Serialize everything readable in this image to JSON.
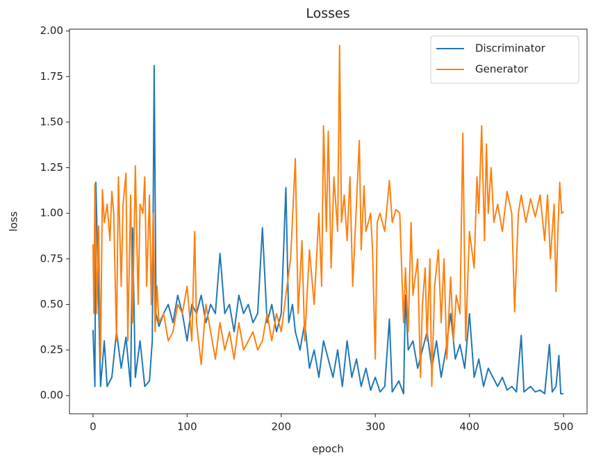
{
  "chart_data": {
    "type": "line",
    "title": "Losses",
    "x_label": "epoch",
    "y_label": "loss",
    "xlim": [
      -25,
      525
    ],
    "ylim": [
      -0.1,
      2.01
    ],
    "xticks": [
      0,
      100,
      200,
      300,
      400,
      500
    ],
    "yticks": [
      {
        "value": 0,
        "label": "0.00"
      },
      {
        "value": 0.25,
        "label": "0.25"
      },
      {
        "value": 0.5,
        "label": "0.50"
      },
      {
        "value": 0.75,
        "label": "0.75"
      },
      {
        "value": 1,
        "label": "1.00"
      },
      {
        "value": 1.25,
        "label": "1.25"
      },
      {
        "value": 1.5,
        "label": "1.50"
      },
      {
        "value": 1.75,
        "label": "1.75"
      },
      {
        "value": 2,
        "label": "2.00"
      }
    ],
    "grid": false,
    "legend": "upper right",
    "series": [
      {
        "name": "Discriminator",
        "color": "#1f77b4",
        "x": [
          0,
          2,
          3,
          5,
          8,
          12,
          15,
          20,
          25,
          30,
          35,
          40,
          42,
          45,
          50,
          55,
          60,
          63,
          65,
          67,
          70,
          75,
          80,
          85,
          90,
          95,
          100,
          105,
          110,
          115,
          120,
          125,
          130,
          135,
          140,
          145,
          150,
          155,
          160,
          165,
          170,
          175,
          180,
          185,
          190,
          195,
          200,
          205,
          208,
          212,
          215,
          220,
          225,
          230,
          235,
          240,
          245,
          250,
          255,
          260,
          265,
          270,
          275,
          280,
          285,
          290,
          295,
          300,
          305,
          310,
          315,
          318,
          325,
          330,
          332,
          335,
          340,
          345,
          350,
          355,
          360,
          365,
          370,
          375,
          380,
          385,
          390,
          395,
          400,
          405,
          410,
          415,
          420,
          425,
          430,
          435,
          440,
          445,
          450,
          455,
          458,
          465,
          470,
          475,
          480,
          485,
          488,
          492,
          495,
          497,
          500
        ],
        "values": [
          0.36,
          0.05,
          1.17,
          0.76,
          0.05,
          0.3,
          0.05,
          0.1,
          0.35,
          0.15,
          0.32,
          0.05,
          0.92,
          0.1,
          0.3,
          0.05,
          0.08,
          0.3,
          1.81,
          0.45,
          0.38,
          0.45,
          0.5,
          0.4,
          0.55,
          0.45,
          0.3,
          0.5,
          0.45,
          0.55,
          0.4,
          0.5,
          0.45,
          0.78,
          0.45,
          0.5,
          0.35,
          0.55,
          0.45,
          0.5,
          0.4,
          0.45,
          0.92,
          0.4,
          0.5,
          0.35,
          0.45,
          1.14,
          0.4,
          0.5,
          0.35,
          0.25,
          0.4,
          0.15,
          0.25,
          0.1,
          0.3,
          0.2,
          0.1,
          0.25,
          0.05,
          0.3,
          0.1,
          0.2,
          0.05,
          0.15,
          0.03,
          0.1,
          0.02,
          0.05,
          0.42,
          0.02,
          0.08,
          0.01,
          0.55,
          0.25,
          0.3,
          0.15,
          0.25,
          0.35,
          0.15,
          0.3,
          0.1,
          0.25,
          0.45,
          0.2,
          0.28,
          0.15,
          0.45,
          0.1,
          0.2,
          0.05,
          0.15,
          0.1,
          0.05,
          0.1,
          0.03,
          0.05,
          0.02,
          0.33,
          0.02,
          0.05,
          0.02,
          0.03,
          0.01,
          0.28,
          0.02,
          0.05,
          0.22,
          0.01,
          0.01
        ]
      },
      {
        "name": "Generator",
        "color": "#ff7f0e",
        "x": [
          0,
          1,
          2,
          4,
          6,
          8,
          10,
          12,
          15,
          18,
          20,
          22,
          25,
          27,
          30,
          32,
          35,
          37,
          40,
          42,
          45,
          48,
          50,
          53,
          55,
          57,
          60,
          62,
          64,
          66,
          68,
          70,
          75,
          80,
          85,
          90,
          95,
          100,
          105,
          108,
          110,
          115,
          120,
          125,
          130,
          135,
          140,
          145,
          150,
          155,
          160,
          165,
          170,
          175,
          180,
          185,
          190,
          195,
          200,
          205,
          210,
          215,
          218,
          222,
          225,
          230,
          235,
          240,
          243,
          245,
          248,
          250,
          253,
          256,
          260,
          262,
          264,
          267,
          270,
          273,
          276,
          280,
          283,
          285,
          288,
          290,
          295,
          297,
          300,
          302,
          305,
          310,
          315,
          318,
          322,
          326,
          330,
          332,
          335,
          338,
          340,
          345,
          348,
          350,
          353,
          355,
          358,
          360,
          363,
          367,
          370,
          373,
          376,
          380,
          383,
          386,
          390,
          393,
          396,
          400,
          405,
          408,
          410,
          413,
          416,
          418,
          420,
          423,
          426,
          430,
          435,
          440,
          445,
          448,
          452,
          455,
          460,
          465,
          470,
          475,
          480,
          483,
          486,
          490,
          492,
          494,
          496,
          498,
          500
        ],
        "values": [
          0.83,
          0.45,
          1.16,
          0.45,
          0.93,
          0.2,
          1.13,
          0.95,
          1.05,
          0.85,
          1.12,
          1.0,
          0.3,
          1.2,
          0.6,
          1.05,
          1.22,
          0.3,
          1.1,
          0.4,
          1.26,
          0.5,
          1.05,
          1.0,
          1.2,
          0.6,
          1.1,
          0.5,
          1.0,
          0.35,
          0.6,
          0.4,
          0.45,
          0.3,
          0.35,
          0.5,
          0.45,
          0.6,
          0.3,
          0.9,
          0.4,
          0.17,
          0.5,
          0.35,
          0.2,
          0.4,
          0.25,
          0.35,
          0.2,
          0.4,
          0.25,
          0.3,
          0.35,
          0.25,
          0.3,
          0.45,
          0.3,
          0.45,
          0.35,
          0.55,
          0.75,
          1.3,
          0.45,
          0.85,
          0.3,
          0.8,
          0.5,
          1.0,
          0.6,
          1.48,
          0.9,
          1.45,
          0.7,
          1.2,
          0.9,
          1.92,
          0.95,
          1.1,
          0.85,
          1.2,
          0.6,
          1.05,
          1.4,
          0.8,
          1.15,
          0.9,
          1.0,
          0.8,
          0.2,
          0.95,
          1.0,
          0.9,
          1.18,
          0.95,
          1.02,
          1.0,
          0.4,
          0.7,
          0.35,
          0.95,
          0.55,
          0.75,
          0.1,
          0.5,
          0.7,
          0.3,
          0.75,
          0.05,
          0.6,
          0.8,
          0.4,
          0.75,
          0.2,
          0.65,
          0.3,
          0.55,
          0.45,
          1.44,
          0.3,
          0.9,
          0.7,
          1.2,
          1.0,
          1.48,
          0.85,
          1.38,
          1.0,
          1.25,
          0.95,
          1.05,
          0.9,
          1.12,
          1.0,
          0.46,
          1.0,
          1.1,
          0.95,
          1.08,
          0.98,
          1.1,
          0.85,
          1.1,
          0.75,
          1.05,
          0.57,
          0.9,
          1.17,
          1.0,
          1.01
        ]
      }
    ]
  }
}
